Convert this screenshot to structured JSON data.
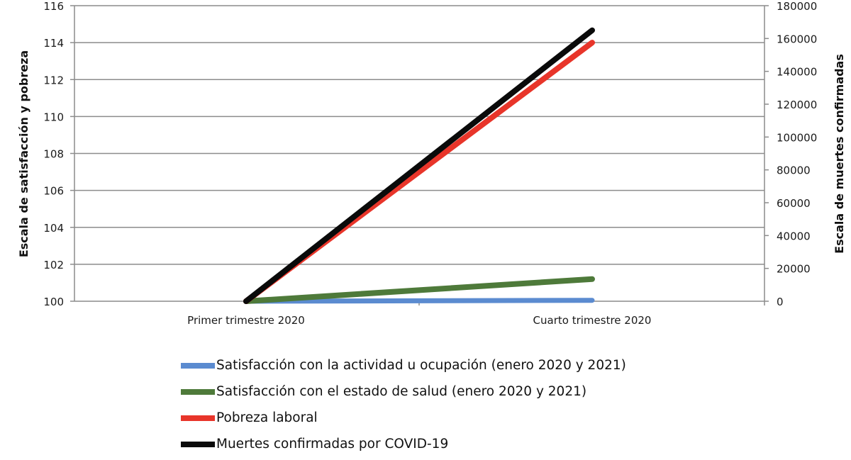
{
  "chart_data": {
    "type": "line",
    "title": "",
    "categories": [
      "Primer trimestre 2020",
      "Cuarto trimestre 2020"
    ],
    "xlabel": "",
    "ylabel": "Escala de satisfacción y pobreza",
    "y2label": "Escala de muertes confirmadas",
    "ylim": [
      100,
      116
    ],
    "y2lim": [
      0,
      180000
    ],
    "yticks": [
      100,
      102,
      104,
      106,
      108,
      110,
      112,
      114,
      116
    ],
    "y2ticks": [
      0,
      20000,
      40000,
      60000,
      80000,
      100000,
      120000,
      140000,
      160000,
      180000
    ],
    "grid": true,
    "legend_position": "bottom",
    "series": [
      {
        "name": "Satisfacción con la actividad u ocupación (enero 2020 y 2021)",
        "axis": "left",
        "color": "#5b8bd0",
        "values": [
          100,
          100.05
        ]
      },
      {
        "name": "Satisfacción con el estado de salud (enero 2020 y 2021)",
        "axis": "left",
        "color": "#4e7a3a",
        "values": [
          100,
          101.2
        ]
      },
      {
        "name": "Pobreza laboral",
        "axis": "left",
        "color": "#e8352a",
        "values": [
          100,
          114.0
        ]
      },
      {
        "name": "Muertes confirmadas por COVID-19",
        "axis": "right",
        "color": "#0a0a0a",
        "values": [
          0,
          165000
        ]
      }
    ]
  },
  "axes": {
    "left_title": "Escala de satisfacción y pobreza",
    "right_title": "Escala de muertes confirmadas",
    "left_ticks": [
      "100",
      "102",
      "104",
      "106",
      "108",
      "110",
      "112",
      "114",
      "116"
    ],
    "right_ticks": [
      "0",
      "20000",
      "40000",
      "60000",
      "80000",
      "100000",
      "120000",
      "140000",
      "160000",
      "180000"
    ],
    "categories": [
      "Primer trimestre 2020",
      "Cuarto trimestre 2020"
    ]
  },
  "legend": {
    "items": [
      {
        "label": "Satisfacción con la actividad u ocupación (enero 2020 y 2021)",
        "color": "#5b8bd0"
      },
      {
        "label": "Satisfacción con el estado de salud (enero 2020 y 2021)",
        "color": "#4e7a3a"
      },
      {
        "label": "Pobreza laboral",
        "color": "#e8352a"
      },
      {
        "label": "Muertes confirmadas por COVID-19",
        "color": "#0a0a0a"
      }
    ]
  }
}
